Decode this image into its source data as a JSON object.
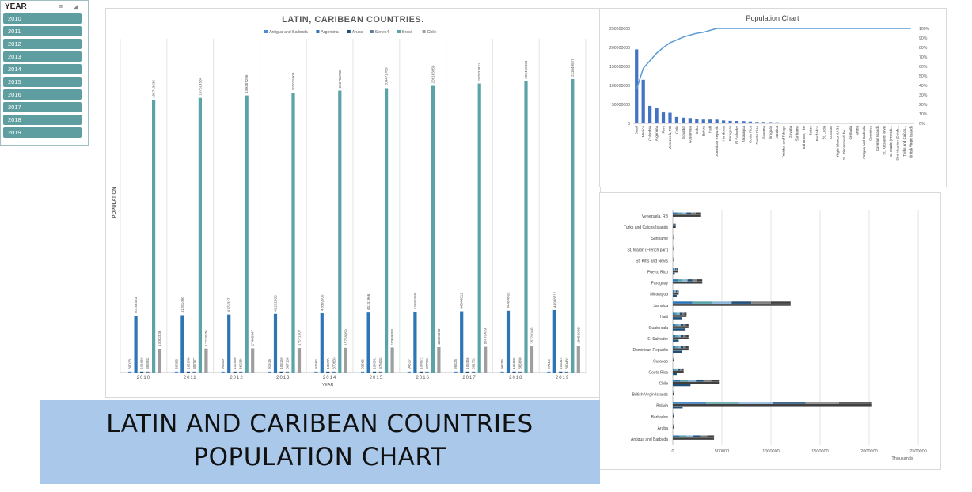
{
  "chart_data": [
    {
      "type": "bar",
      "title": "LATIN, CARIBEAN COUNTRIES.",
      "xlabel": "YEAR",
      "ylabel": "POPULATION",
      "legend_position": "top",
      "categories": [
        "2010",
        "2011",
        "2012",
        "2013",
        "2014",
        "2015",
        "2016",
        "2017",
        "2018",
        "2019"
      ],
      "ylim": [
        0,
        240000000
      ],
      "series": [
        {
          "name": "Antigua and Barbuda",
          "color": "#4d8fd6",
          "values": [
            88028,
            89253,
            90409,
            91516,
            92562,
            93566,
            94527,
            95426,
            96286,
            97118
          ]
        },
        {
          "name": "Argentina",
          "color": "#2e75b6",
          "values": [
            40788453,
            41261490,
            41733271,
            42202935,
            42669500,
            43131966,
            43590368,
            44044811,
            44494502,
            44938712
          ]
        },
        {
          "name": "Aruba",
          "color": "#1f4e79",
          "values": [
            101669,
            102046,
            102560,
            103159,
            103774,
            104341,
            104872,
            105366,
            105845,
            106314
          ]
        },
        {
          "name": "Series4",
          "color": "#5e7a9a",
          "values": [
            354942,
            357977,
            362384,
            367168,
            370633,
            375033,
            377931,
            381761,
            385640,
            389482
          ]
        },
        {
          "name": "Brasil",
          "color": "#5aa3a8",
          "values": [
            195713635,
            197514534,
            199287296,
            201035903,
            202763735,
            204471769,
            206163058,
            207833831,
            209469333,
            211049527
          ]
        },
        {
          "name": "Chile",
          "color": "#9e9ea0",
          "values": [
            17062536,
            17233576,
            17400347,
            17571507,
            17758959,
            17969353,
            18209068,
            18470439,
            18729160,
            18952038
          ]
        }
      ],
      "data_labels": {
        "Antigua and Barbuda": [
          "88028",
          "89253",
          "90409",
          "91516",
          "92562",
          "93566",
          "94527",
          "95426",
          "96286",
          "97118"
        ],
        "Argentina": [
          "40788453",
          "41261490",
          "41733271",
          "42202935",
          "42669500",
          "43131966",
          "43590368",
          "44044811",
          "44494502",
          "44938712"
        ],
        "Aruba": [
          "101669",
          "102046",
          "102560",
          "103159",
          "103774",
          "104341",
          "104872",
          "105366",
          "105845",
          "106314"
        ],
        "Series4": [
          "354942",
          "357977",
          "362384",
          "367168",
          "370633",
          "375033",
          "377931",
          "381761",
          "385640",
          "389482"
        ],
        "Brasil": [
          "195713635",
          "197514534",
          "199287296",
          "201035903",
          "202763735",
          "204471769",
          "206163058",
          "207833831",
          "209469333",
          "211049527"
        ],
        "Chile": [
          "17062536",
          "17233576",
          "17400347",
          "17571507",
          "17758959",
          "17969353",
          "18209068",
          "18470439",
          "18729160",
          "18952038"
        ]
      }
    },
    {
      "type": "bar",
      "subtype": "pareto",
      "title": "Population Chart",
      "xlabel": "",
      "ylabel": "",
      "ylim": [
        0,
        250000000
      ],
      "y_ticks": [
        "0",
        "50000000",
        "100000000",
        "150000000",
        "200000000",
        "250000000"
      ],
      "y2lim": [
        0,
        100
      ],
      "y2_ticks": [
        "0%",
        "10%",
        "20%",
        "30%",
        "40%",
        "50%",
        "60%",
        "70%",
        "80%",
        "90%",
        "100%"
      ],
      "bar_color": "#4472c4",
      "line_color": "#5b9bd5",
      "categories": [
        "Brasil",
        "Mexico",
        "Colombia",
        "Argentina",
        "Peru",
        "Venezuela, RB",
        "Chile",
        "Ecuador",
        "Guatemala",
        "Cuba",
        "Bolivia",
        "Haiti",
        "Dominican Republic",
        "Honduras",
        "Paraguay",
        "El Salvador",
        "Nicaragua",
        "Costa Rica",
        "Puerto Rico",
        "Panama",
        "Uruguay",
        "Jamaica",
        "Trinidad and Tobago",
        "Guyana",
        "Suriname",
        "Bahamas, The",
        "Belize",
        "Barbados",
        "St. Lucia",
        "Curacao",
        "Virgin Islands (U.S.)",
        "St. Vincent and the ...",
        "Grenada",
        "Aruba",
        "Antigua and Barbuda",
        "Dominica",
        "Cayman Islands",
        "St. Kitts and Nevis",
        "St. Martin (French...",
        "Sint Maarten (Dutch...",
        "Turks and Caicos...",
        "British Virgin Islands"
      ],
      "values": [
        195000000,
        115000000,
        46000000,
        41000000,
        29000000,
        28000000,
        17000000,
        15000000,
        14000000,
        11000000,
        10000000,
        10000000,
        9800000,
        7600000,
        6400000,
        6200000,
        5800000,
        4700000,
        3700000,
        3600000,
        3300000,
        2700000,
        1300000,
        760000,
        520000,
        380000,
        320000,
        280000,
        170000,
        150000,
        106000,
        109000,
        105000,
        101000,
        88000,
        70000,
        55000,
        52000,
        36000,
        37000,
        30000,
        27000
      ],
      "cumulative_percent": [
        36,
        58,
        66,
        74,
        80,
        85,
        88,
        91,
        93,
        95,
        96,
        98,
        100,
        100,
        100,
        100,
        100,
        100,
        100,
        100,
        100,
        100,
        100,
        100,
        100,
        100,
        100,
        100,
        100,
        100,
        100,
        100,
        100,
        100,
        100,
        100,
        100,
        100,
        100,
        100,
        100,
        100
      ]
    },
    {
      "type": "bar",
      "orientation": "horizontal",
      "title": "",
      "xlabel": "Thousands",
      "ylabel": "",
      "xlim": [
        0,
        2500000
      ],
      "x_ticks": [
        "0",
        "500000",
        "1000000",
        "1500000",
        "2000000",
        "2500000"
      ],
      "categories": [
        "Antigua and Barbuda",
        "Aruba",
        "Barbados",
        "Bolivia",
        "British Virgin Islands",
        "Chile",
        "Costa Rica",
        "Curacao",
        "Dominican Republic",
        "El Salvador",
        "Guatemala",
        "Haiti",
        "Jamaica",
        "Nicaragua",
        "Paraguay",
        "Puerto Rico",
        "St. Kitts and Nevis",
        "St. Martin (French part)",
        "Suriname",
        "Turks and Caicos Islands",
        "Venezuela, RB"
      ],
      "values": [
        420000,
        10000,
        10000,
        2030000,
        10000,
        470000,
        110000,
        10000,
        160000,
        160000,
        160000,
        140000,
        1200000,
        60000,
        300000,
        50000,
        5000,
        5000,
        5000,
        30000,
        280000
      ],
      "values_second": [
        0,
        0,
        0,
        100000,
        0,
        180000,
        40000,
        0,
        90000,
        60000,
        130000,
        90000,
        0,
        40000,
        0,
        20000,
        0,
        0,
        0,
        0,
        0
      ],
      "bar_colors": [
        "#2e75b6",
        "#5aa3a8",
        "#8ab5d8",
        "#1f4e79",
        "#7f7f7f",
        "#404040"
      ]
    }
  ],
  "slicer": {
    "title": "YEAR",
    "items": [
      "2010",
      "2011",
      "2012",
      "2013",
      "2014",
      "2015",
      "2016",
      "2017",
      "2018",
      "2019"
    ]
  },
  "banner": {
    "line1": "LATIN AND CARIBEAN COUNTRIES",
    "line2": "POPULATION CHART"
  }
}
